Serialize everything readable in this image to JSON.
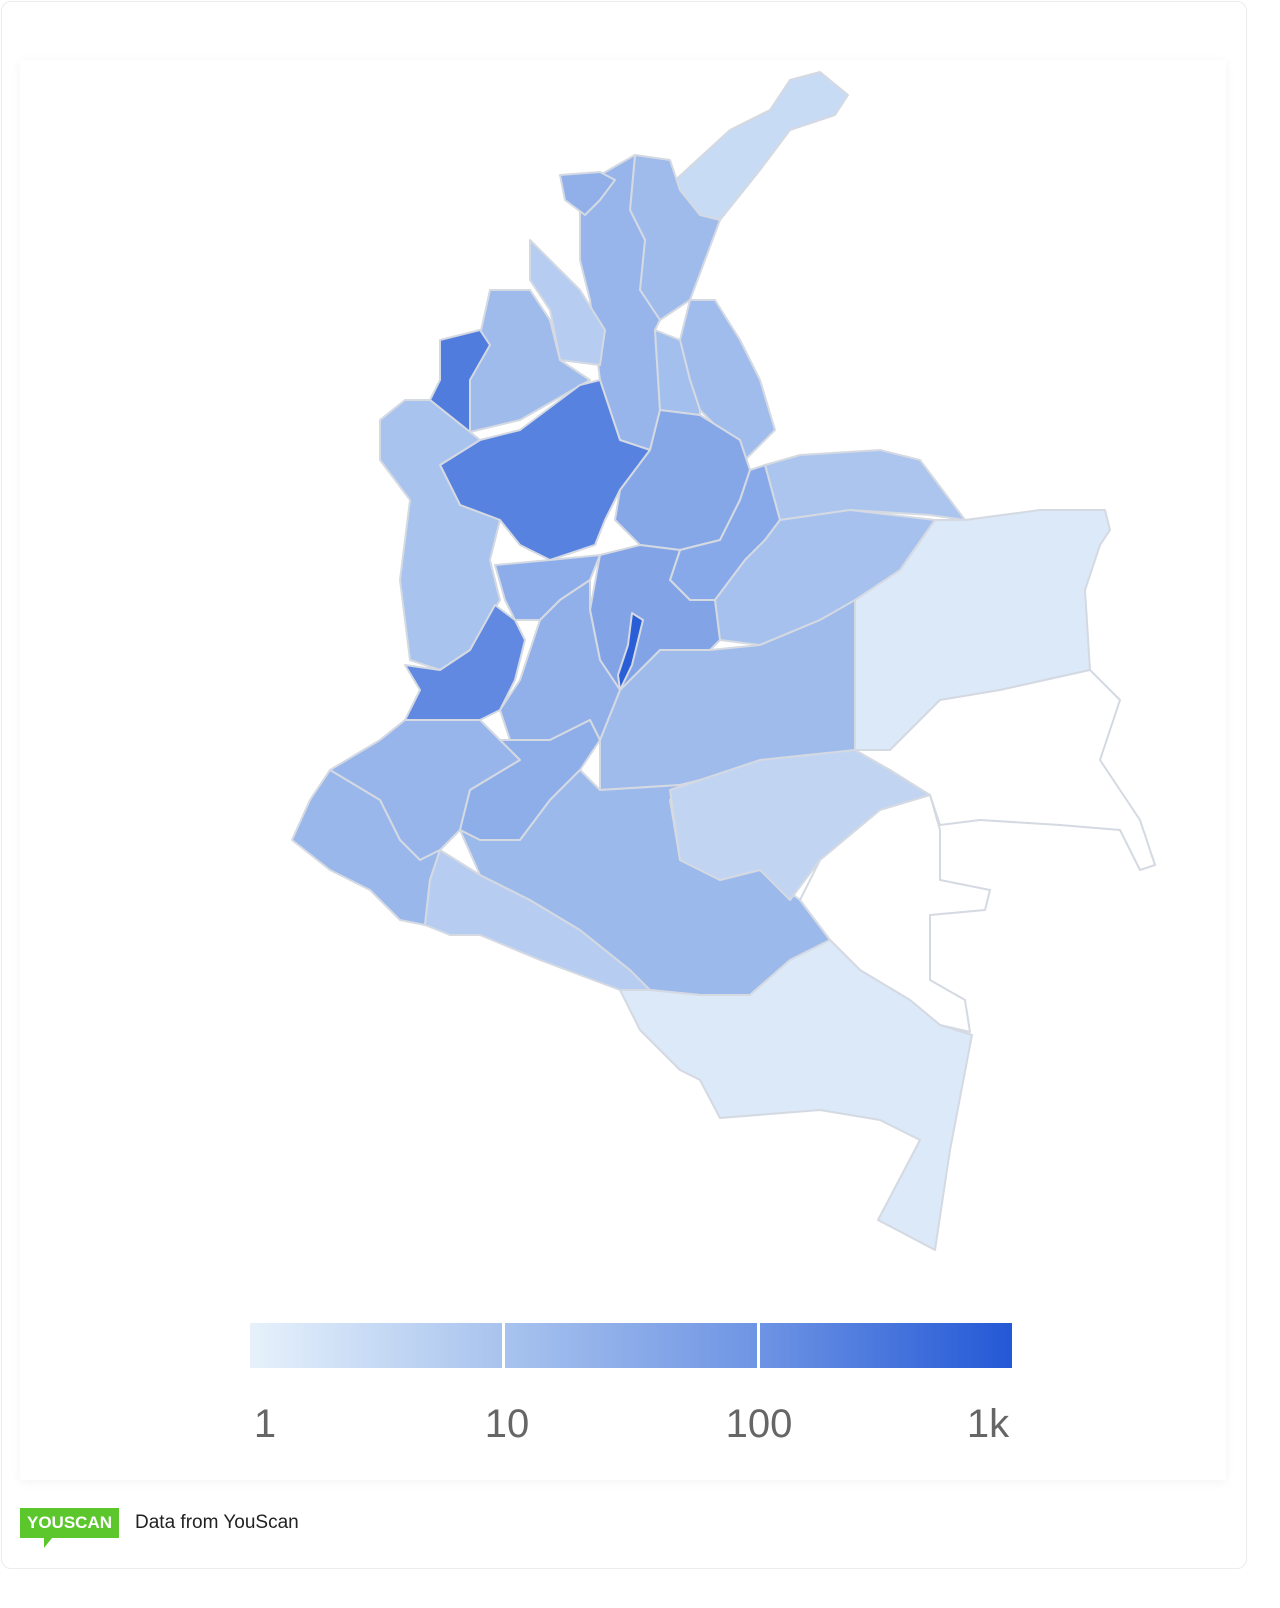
{
  "map": {
    "scale": "log",
    "color_min": "#e6f1fb",
    "color_max": "#2358d6",
    "no_data_color": "#ffffff",
    "regions": [
      {
        "id": "la-guajira",
        "value": 3
      },
      {
        "id": "magdalena",
        "value": 15
      },
      {
        "id": "atlantico",
        "value": 25
      },
      {
        "id": "bolivar",
        "value": 20
      },
      {
        "id": "sucre",
        "value": 6
      },
      {
        "id": "cordoba",
        "value": 15
      },
      {
        "id": "choco",
        "value": 10
      },
      {
        "id": "antioquia",
        "value": 200
      },
      {
        "id": "antioquia-uraba",
        "value": 250
      },
      {
        "id": "cesar",
        "value": 14
      },
      {
        "id": "norte-de-santander",
        "value": 12
      },
      {
        "id": "santander",
        "value": 40
      },
      {
        "id": "arauca",
        "value": 9
      },
      {
        "id": "casanare",
        "value": 11
      },
      {
        "id": "boyaca",
        "value": 35
      },
      {
        "id": "vichada",
        "value": 1.5
      },
      {
        "id": "meta",
        "value": 15
      },
      {
        "id": "cundinamarca",
        "value": 45
      },
      {
        "id": "bogota",
        "value": 800
      },
      {
        "id": "caldas-risaralda-quindio",
        "value": 30
      },
      {
        "id": "tolima",
        "value": 25
      },
      {
        "id": "valle-del-cauca",
        "value": 150
      },
      {
        "id": "cauca",
        "value": 20
      },
      {
        "id": "huila",
        "value": 28
      },
      {
        "id": "narino",
        "value": 18
      },
      {
        "id": "putumayo",
        "value": 6
      },
      {
        "id": "caqueta",
        "value": 16
      },
      {
        "id": "guaviare",
        "value": 4
      },
      {
        "id": "guainia",
        "value": null
      },
      {
        "id": "vaupes",
        "value": null
      },
      {
        "id": "amazonas",
        "value": 1.5
      }
    ]
  },
  "legend": {
    "ticks": [
      "1",
      "10",
      "100",
      "1k"
    ],
    "stops": [
      "#e6f1fb",
      "#a8c3ee",
      "#6e94e4",
      "#2358d6"
    ]
  },
  "footer": {
    "logo_text": "YOUSCAN",
    "source_text": "Data from YouScan"
  }
}
